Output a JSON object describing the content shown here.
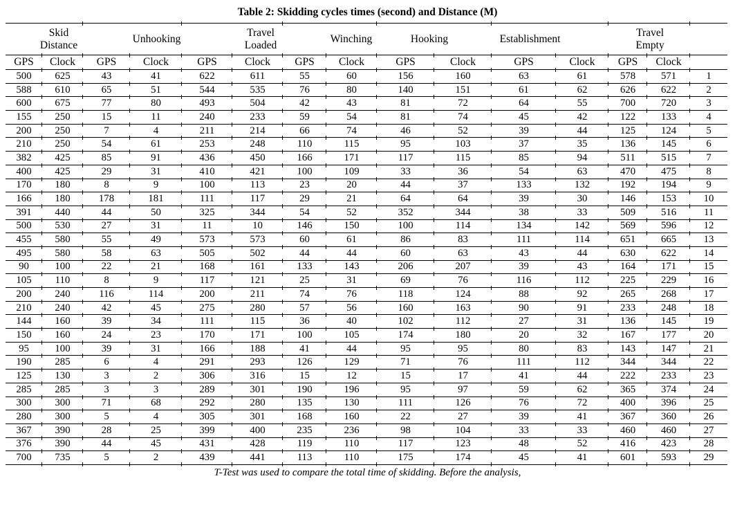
{
  "title": "Table 2: Skidding cycles times (second) and Distance (M)",
  "footer": "T-Test was used to compare the total time of skidding. Before the analysis,",
  "table": {
    "groups": [
      {
        "id": "skid-distance",
        "label": "Skid\nDistance",
        "colspan": 2
      },
      {
        "id": "unhooking",
        "label": "Unhooking",
        "colspan": 2
      },
      {
        "id": "travel-loaded",
        "label": "Travel\nLoaded",
        "colspan": 2
      },
      {
        "id": "winching",
        "label": "Winching",
        "colspan": 2
      },
      {
        "id": "hooking",
        "label": "Hooking",
        "colspan": 2
      },
      {
        "id": "establishment",
        "label": "Establishment",
        "colspan": 2
      },
      {
        "id": "travel-empty",
        "label": "Travel\nEmpty",
        "colspan": 2
      }
    ],
    "subheaders": [
      "GPS",
      "Clock",
      "GPS",
      "Clock",
      "GPS",
      "Clock",
      "GPS",
      "Clock",
      "GPS",
      "Clock",
      "GPS",
      "Clock",
      "GPS",
      "Clock"
    ],
    "row_number_header": "",
    "rows": [
      [
        500,
        625,
        43,
        41,
        622,
        611,
        55,
        60,
        156,
        160,
        63,
        61,
        578,
        571,
        1
      ],
      [
        588,
        610,
        65,
        51,
        544,
        535,
        76,
        80,
        140,
        151,
        61,
        62,
        626,
        622,
        2
      ],
      [
        600,
        675,
        77,
        80,
        493,
        504,
        42,
        43,
        81,
        72,
        64,
        55,
        700,
        720,
        3
      ],
      [
        155,
        250,
        15,
        11,
        240,
        233,
        59,
        54,
        81,
        74,
        45,
        42,
        122,
        133,
        4
      ],
      [
        200,
        250,
        7,
        4,
        211,
        214,
        66,
        74,
        46,
        52,
        39,
        44,
        125,
        124,
        5
      ],
      [
        210,
        250,
        54,
        61,
        253,
        248,
        110,
        115,
        95,
        103,
        37,
        35,
        136,
        145,
        6
      ],
      [
        382,
        425,
        85,
        91,
        436,
        450,
        166,
        171,
        117,
        115,
        85,
        94,
        511,
        515,
        7
      ],
      [
        400,
        425,
        29,
        31,
        410,
        421,
        100,
        109,
        33,
        36,
        54,
        63,
        470,
        475,
        8
      ],
      [
        170,
        180,
        8,
        9,
        100,
        113,
        23,
        20,
        44,
        37,
        133,
        132,
        192,
        194,
        9
      ],
      [
        166,
        180,
        178,
        181,
        111,
        117,
        29,
        21,
        64,
        64,
        39,
        30,
        146,
        153,
        10
      ],
      [
        391,
        440,
        44,
        50,
        325,
        344,
        54,
        52,
        352,
        344,
        38,
        33,
        509,
        516,
        11
      ],
      [
        500,
        530,
        27,
        31,
        11,
        10,
        146,
        150,
        100,
        114,
        134,
        142,
        569,
        596,
        12
      ],
      [
        455,
        580,
        55,
        49,
        573,
        573,
        60,
        61,
        86,
        83,
        111,
        114,
        651,
        665,
        13
      ],
      [
        495,
        580,
        58,
        63,
        505,
        502,
        44,
        44,
        60,
        63,
        43,
        44,
        630,
        622,
        14
      ],
      [
        90,
        100,
        22,
        21,
        168,
        161,
        133,
        143,
        206,
        207,
        39,
        43,
        164,
        171,
        15
      ],
      [
        105,
        110,
        8,
        9,
        117,
        121,
        25,
        31,
        69,
        76,
        116,
        112,
        225,
        229,
        16
      ],
      [
        200,
        240,
        116,
        114,
        200,
        211,
        74,
        76,
        118,
        124,
        88,
        92,
        265,
        268,
        17
      ],
      [
        210,
        240,
        42,
        45,
        275,
        280,
        57,
        56,
        160,
        163,
        90,
        91,
        233,
        248,
        18
      ],
      [
        144,
        160,
        39,
        34,
        111,
        115,
        36,
        40,
        102,
        112,
        27,
        31,
        136,
        145,
        19
      ],
      [
        150,
        160,
        24,
        23,
        170,
        171,
        100,
        105,
        174,
        180,
        20,
        32,
        167,
        177,
        20
      ],
      [
        95,
        100,
        39,
        31,
        166,
        188,
        41,
        44,
        95,
        95,
        80,
        83,
        143,
        147,
        21
      ],
      [
        190,
        285,
        6,
        4,
        291,
        293,
        126,
        129,
        71,
        76,
        111,
        112,
        344,
        344,
        22
      ],
      [
        125,
        130,
        3,
        2,
        306,
        316,
        15,
        12,
        15,
        17,
        41,
        44,
        222,
        233,
        23
      ],
      [
        285,
        285,
        3,
        3,
        289,
        301,
        190,
        196,
        95,
        97,
        59,
        62,
        365,
        374,
        24
      ],
      [
        300,
        300,
        71,
        68,
        292,
        280,
        135,
        130,
        111,
        126,
        76,
        72,
        400,
        396,
        25
      ],
      [
        280,
        300,
        5,
        4,
        305,
        301,
        168,
        160,
        22,
        27,
        39,
        41,
        367,
        360,
        26
      ],
      [
        367,
        390,
        28,
        25,
        399,
        400,
        235,
        236,
        98,
        104,
        33,
        33,
        460,
        460,
        27
      ],
      [
        376,
        390,
        44,
        45,
        431,
        428,
        119,
        110,
        117,
        123,
        48,
        52,
        416,
        423,
        28
      ],
      [
        700,
        735,
        5,
        2,
        439,
        441,
        113,
        110,
        175,
        174,
        45,
        41,
        601,
        593,
        29
      ]
    ]
  }
}
